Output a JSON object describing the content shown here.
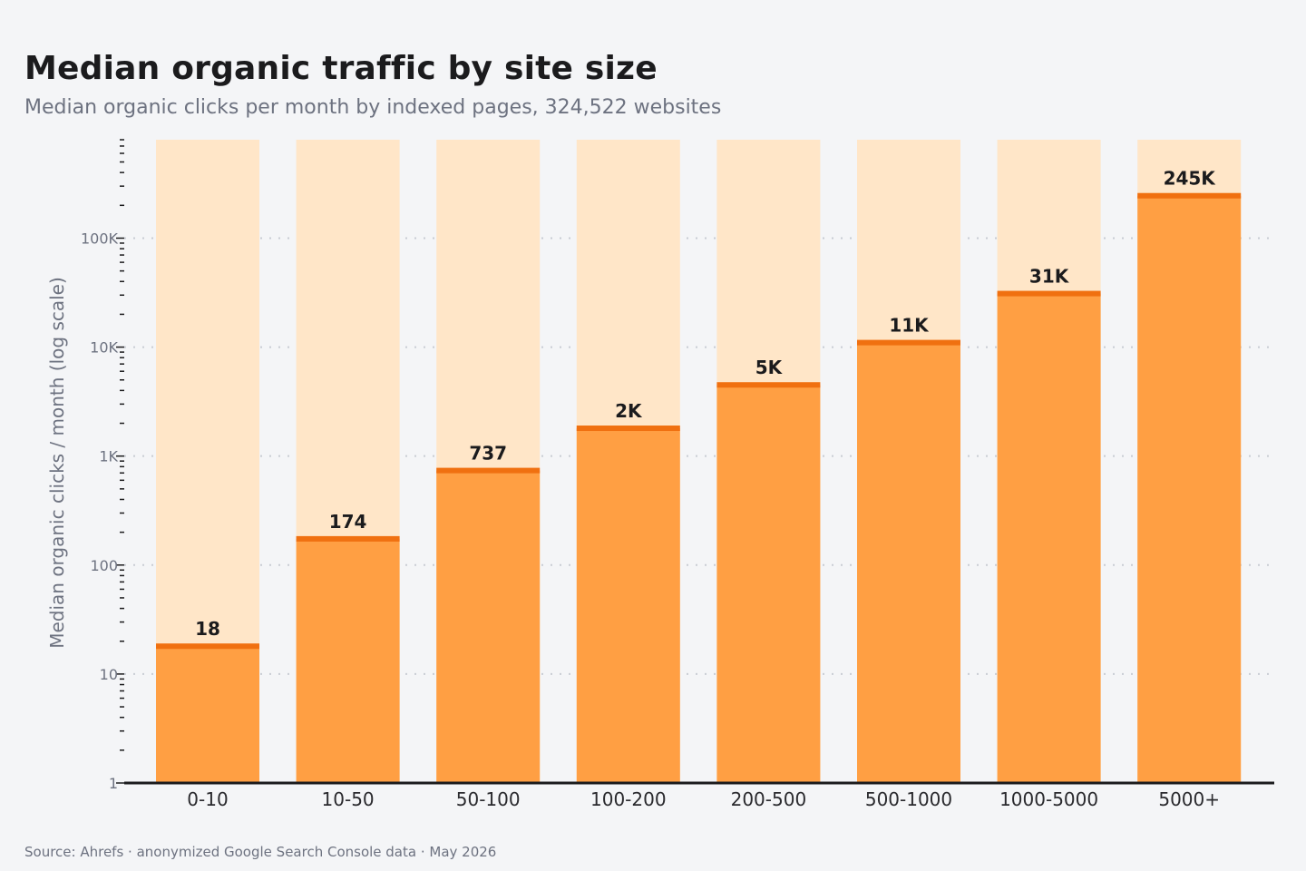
{
  "colors": {
    "background": "#f4f5f7",
    "bar_fill": "#ff9f43",
    "bar_track": "#ffe6c8",
    "bar_cap": "#f07010",
    "grid": "#c8ccd3",
    "axis": "#1b1b1d"
  },
  "footer": {
    "source": "Source: Ahrefs · anonymized Google Search Console data · May 2026"
  },
  "chart_data": {
    "type": "bar",
    "title": "Median organic traffic by site size",
    "subtitle": "Median organic clicks per month by indexed pages, 324,522 websites",
    "xlabel": "",
    "ylabel": "Median organic clicks / month (log scale)",
    "yscale": "log",
    "ylim": [
      1,
      800000
    ],
    "grid": "horizontal dotted at major ticks",
    "yticks": [
      1,
      10,
      100,
      1000,
      10000,
      100000
    ],
    "ytick_labels": [
      "1",
      "10",
      "100",
      "1K",
      "10K",
      "100K"
    ],
    "categories": [
      "0-10",
      "10-50",
      "50-100",
      "100-200",
      "200-500",
      "500-1000",
      "1000-5000",
      "5000+"
    ],
    "values": [
      18,
      174,
      737,
      1800,
      4500,
      11000,
      31000,
      245000
    ],
    "data_labels": [
      "18",
      "174",
      "737",
      "2K",
      "5K",
      "11K",
      "31K",
      "245K"
    ]
  }
}
